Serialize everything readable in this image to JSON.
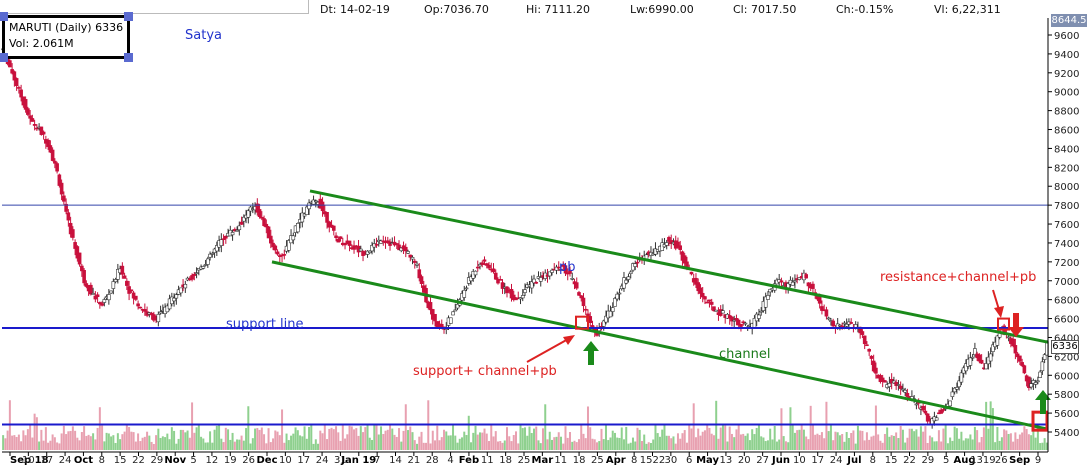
{
  "header": {
    "date": "Dt: 14-02-19",
    "open": "Op:7036.70",
    "high": "Hi: 7111.20",
    "low": "Lw:6990.00",
    "close": "Cl: 7017.50",
    "change": "Ch:-0.15%",
    "volume": "Vl: 6,22,311"
  },
  "legend": {
    "line1": "MARUTI (Daily) 6336",
    "line2": "Vol: 2.061M"
  },
  "author": "Satya",
  "last_price_badge": "8644.5",
  "current_price_badge": "6336",
  "colors": {
    "up_candle": "#ffffff",
    "down_candle": "#c8103c",
    "channel": "#1a8a1a",
    "support": "#1a1acc",
    "annotation_red": "#dd2222"
  },
  "chart_data": {
    "type": "candlestick",
    "symbol": "MARUTI",
    "ylim": [
      5300,
      9800
    ],
    "y_ticks": [
      9600,
      9400,
      9200,
      9000,
      8800,
      8600,
      8400,
      8200,
      8000,
      7800,
      7600,
      7400,
      7200,
      7000,
      6800,
      6600,
      6400,
      6200,
      6000,
      5800,
      5600,
      5400
    ],
    "x_tick_labels": [
      {
        "label": "Sep 18",
        "month": true
      },
      {
        "label": "10"
      },
      {
        "label": "17"
      },
      {
        "label": "24"
      },
      {
        "label": "Oct",
        "month": true
      },
      {
        "label": "8"
      },
      {
        "label": "15"
      },
      {
        "label": "22"
      },
      {
        "label": "29"
      },
      {
        "label": "Nov",
        "month": true
      },
      {
        "label": "5"
      },
      {
        "label": "12"
      },
      {
        "label": "19"
      },
      {
        "label": "26"
      },
      {
        "label": "Dec",
        "month": true
      },
      {
        "label": "10"
      },
      {
        "label": "17"
      },
      {
        "label": "24"
      },
      {
        "label": "31"
      },
      {
        "label": "Jan 19",
        "month": true
      },
      {
        "label": "7"
      },
      {
        "label": "14"
      },
      {
        "label": "21"
      },
      {
        "label": "28"
      },
      {
        "label": "4"
      },
      {
        "label": "Feb",
        "month": true
      },
      {
        "label": "11"
      },
      {
        "label": "18"
      },
      {
        "label": "25"
      },
      {
        "label": "Mar",
        "month": true
      },
      {
        "label": "11"
      },
      {
        "label": "18"
      },
      {
        "label": "25"
      },
      {
        "label": "Apr",
        "month": true
      },
      {
        "label": "8"
      },
      {
        "label": "1522"
      },
      {
        "label": "30"
      },
      {
        "label": "6"
      },
      {
        "label": "May",
        "month": true
      },
      {
        "label": "13"
      },
      {
        "label": "20"
      },
      {
        "label": "27"
      },
      {
        "label": "Jun",
        "month": true
      },
      {
        "label": "10"
      },
      {
        "label": "17"
      },
      {
        "label": "24"
      },
      {
        "label": "Jul",
        "month": true
      },
      {
        "label": "8"
      },
      {
        "label": "15"
      },
      {
        "label": "22"
      },
      {
        "label": "29"
      },
      {
        "label": "5"
      },
      {
        "label": "Aug",
        "month": true
      },
      {
        "label": "1319"
      },
      {
        "label": "26"
      },
      {
        "label": "Sep",
        "month": true
      },
      {
        "label": "9"
      }
    ],
    "price_path": [
      [
        0,
        9450
      ],
      [
        4,
        9200
      ],
      [
        8,
        8950
      ],
      [
        12,
        8700
      ],
      [
        16,
        8600
      ],
      [
        20,
        8450
      ],
      [
        24,
        8150
      ],
      [
        28,
        7700
      ],
      [
        32,
        7350
      ],
      [
        36,
        7000
      ],
      [
        40,
        6850
      ],
      [
        44,
        6750
      ],
      [
        48,
        6900
      ],
      [
        52,
        7150
      ],
      [
        56,
        6900
      ],
      [
        60,
        6750
      ],
      [
        64,
        6650
      ],
      [
        68,
        6600
      ],
      [
        72,
        6700
      ],
      [
        76,
        6850
      ],
      [
        80,
        6950
      ],
      [
        84,
        7050
      ],
      [
        88,
        7150
      ],
      [
        92,
        7250
      ],
      [
        96,
        7400
      ],
      [
        100,
        7500
      ],
      [
        104,
        7550
      ],
      [
        108,
        7700
      ],
      [
        112,
        7800
      ],
      [
        116,
        7600
      ],
      [
        120,
        7350
      ],
      [
        124,
        7250
      ],
      [
        128,
        7450
      ],
      [
        132,
        7650
      ],
      [
        136,
        7800
      ],
      [
        140,
        7850
      ],
      [
        144,
        7650
      ],
      [
        148,
        7450
      ],
      [
        152,
        7400
      ],
      [
        156,
        7350
      ],
      [
        160,
        7300
      ],
      [
        164,
        7350
      ],
      [
        168,
        7450
      ],
      [
        172,
        7400
      ],
      [
        176,
        7350
      ],
      [
        180,
        7300
      ],
      [
        184,
        7150
      ],
      [
        188,
        6800
      ],
      [
        192,
        6550
      ],
      [
        196,
        6500
      ],
      [
        200,
        6650
      ],
      [
        204,
        6850
      ],
      [
        208,
        7050
      ],
      [
        212,
        7200
      ],
      [
        216,
        7150
      ],
      [
        220,
        7000
      ],
      [
        224,
        6900
      ],
      [
        228,
        6800
      ],
      [
        232,
        6900
      ],
      [
        236,
        7000
      ],
      [
        240,
        7050
      ],
      [
        244,
        7100
      ],
      [
        248,
        7150
      ],
      [
        252,
        7050
      ],
      [
        256,
        6850
      ],
      [
        260,
        6600
      ],
      [
        264,
        6450
      ],
      [
        268,
        6600
      ],
      [
        272,
        6800
      ],
      [
        276,
        7000
      ],
      [
        280,
        7150
      ],
      [
        284,
        7250
      ],
      [
        288,
        7300
      ],
      [
        292,
        7350
      ],
      [
        296,
        7450
      ],
      [
        300,
        7350
      ],
      [
        304,
        7150
      ],
      [
        308,
        6950
      ],
      [
        312,
        6800
      ],
      [
        316,
        6700
      ],
      [
        320,
        6650
      ],
      [
        324,
        6600
      ],
      [
        328,
        6550
      ],
      [
        332,
        6500
      ],
      [
        336,
        6650
      ],
      [
        340,
        6850
      ],
      [
        344,
        7000
      ],
      [
        348,
        6950
      ],
      [
        352,
        7000
      ],
      [
        356,
        7050
      ],
      [
        360,
        6900
      ],
      [
        364,
        6700
      ],
      [
        368,
        6550
      ],
      [
        372,
        6500
      ],
      [
        376,
        6550
      ],
      [
        380,
        6500
      ],
      [
        384,
        6300
      ],
      [
        388,
        6000
      ],
      [
        392,
        5900
      ],
      [
        396,
        5950
      ],
      [
        400,
        5850
      ],
      [
        404,
        5750
      ],
      [
        408,
        5650
      ],
      [
        412,
        5500
      ],
      [
        416,
        5600
      ],
      [
        420,
        5700
      ],
      [
        424,
        5900
      ],
      [
        428,
        6100
      ],
      [
        432,
        6250
      ],
      [
        436,
        6050
      ],
      [
        440,
        6300
      ],
      [
        444,
        6500
      ],
      [
        448,
        6350
      ],
      [
        452,
        6150
      ],
      [
        456,
        5900
      ],
      [
        460,
        5950
      ],
      [
        464,
        6336
      ]
    ]
  },
  "annotations": {
    "support_line": "support line",
    "pb": "pb",
    "channel": "channel",
    "support_channel_pb": "support+ channel+pb",
    "resistance_channel_pb": "resistance+channel+pb"
  }
}
